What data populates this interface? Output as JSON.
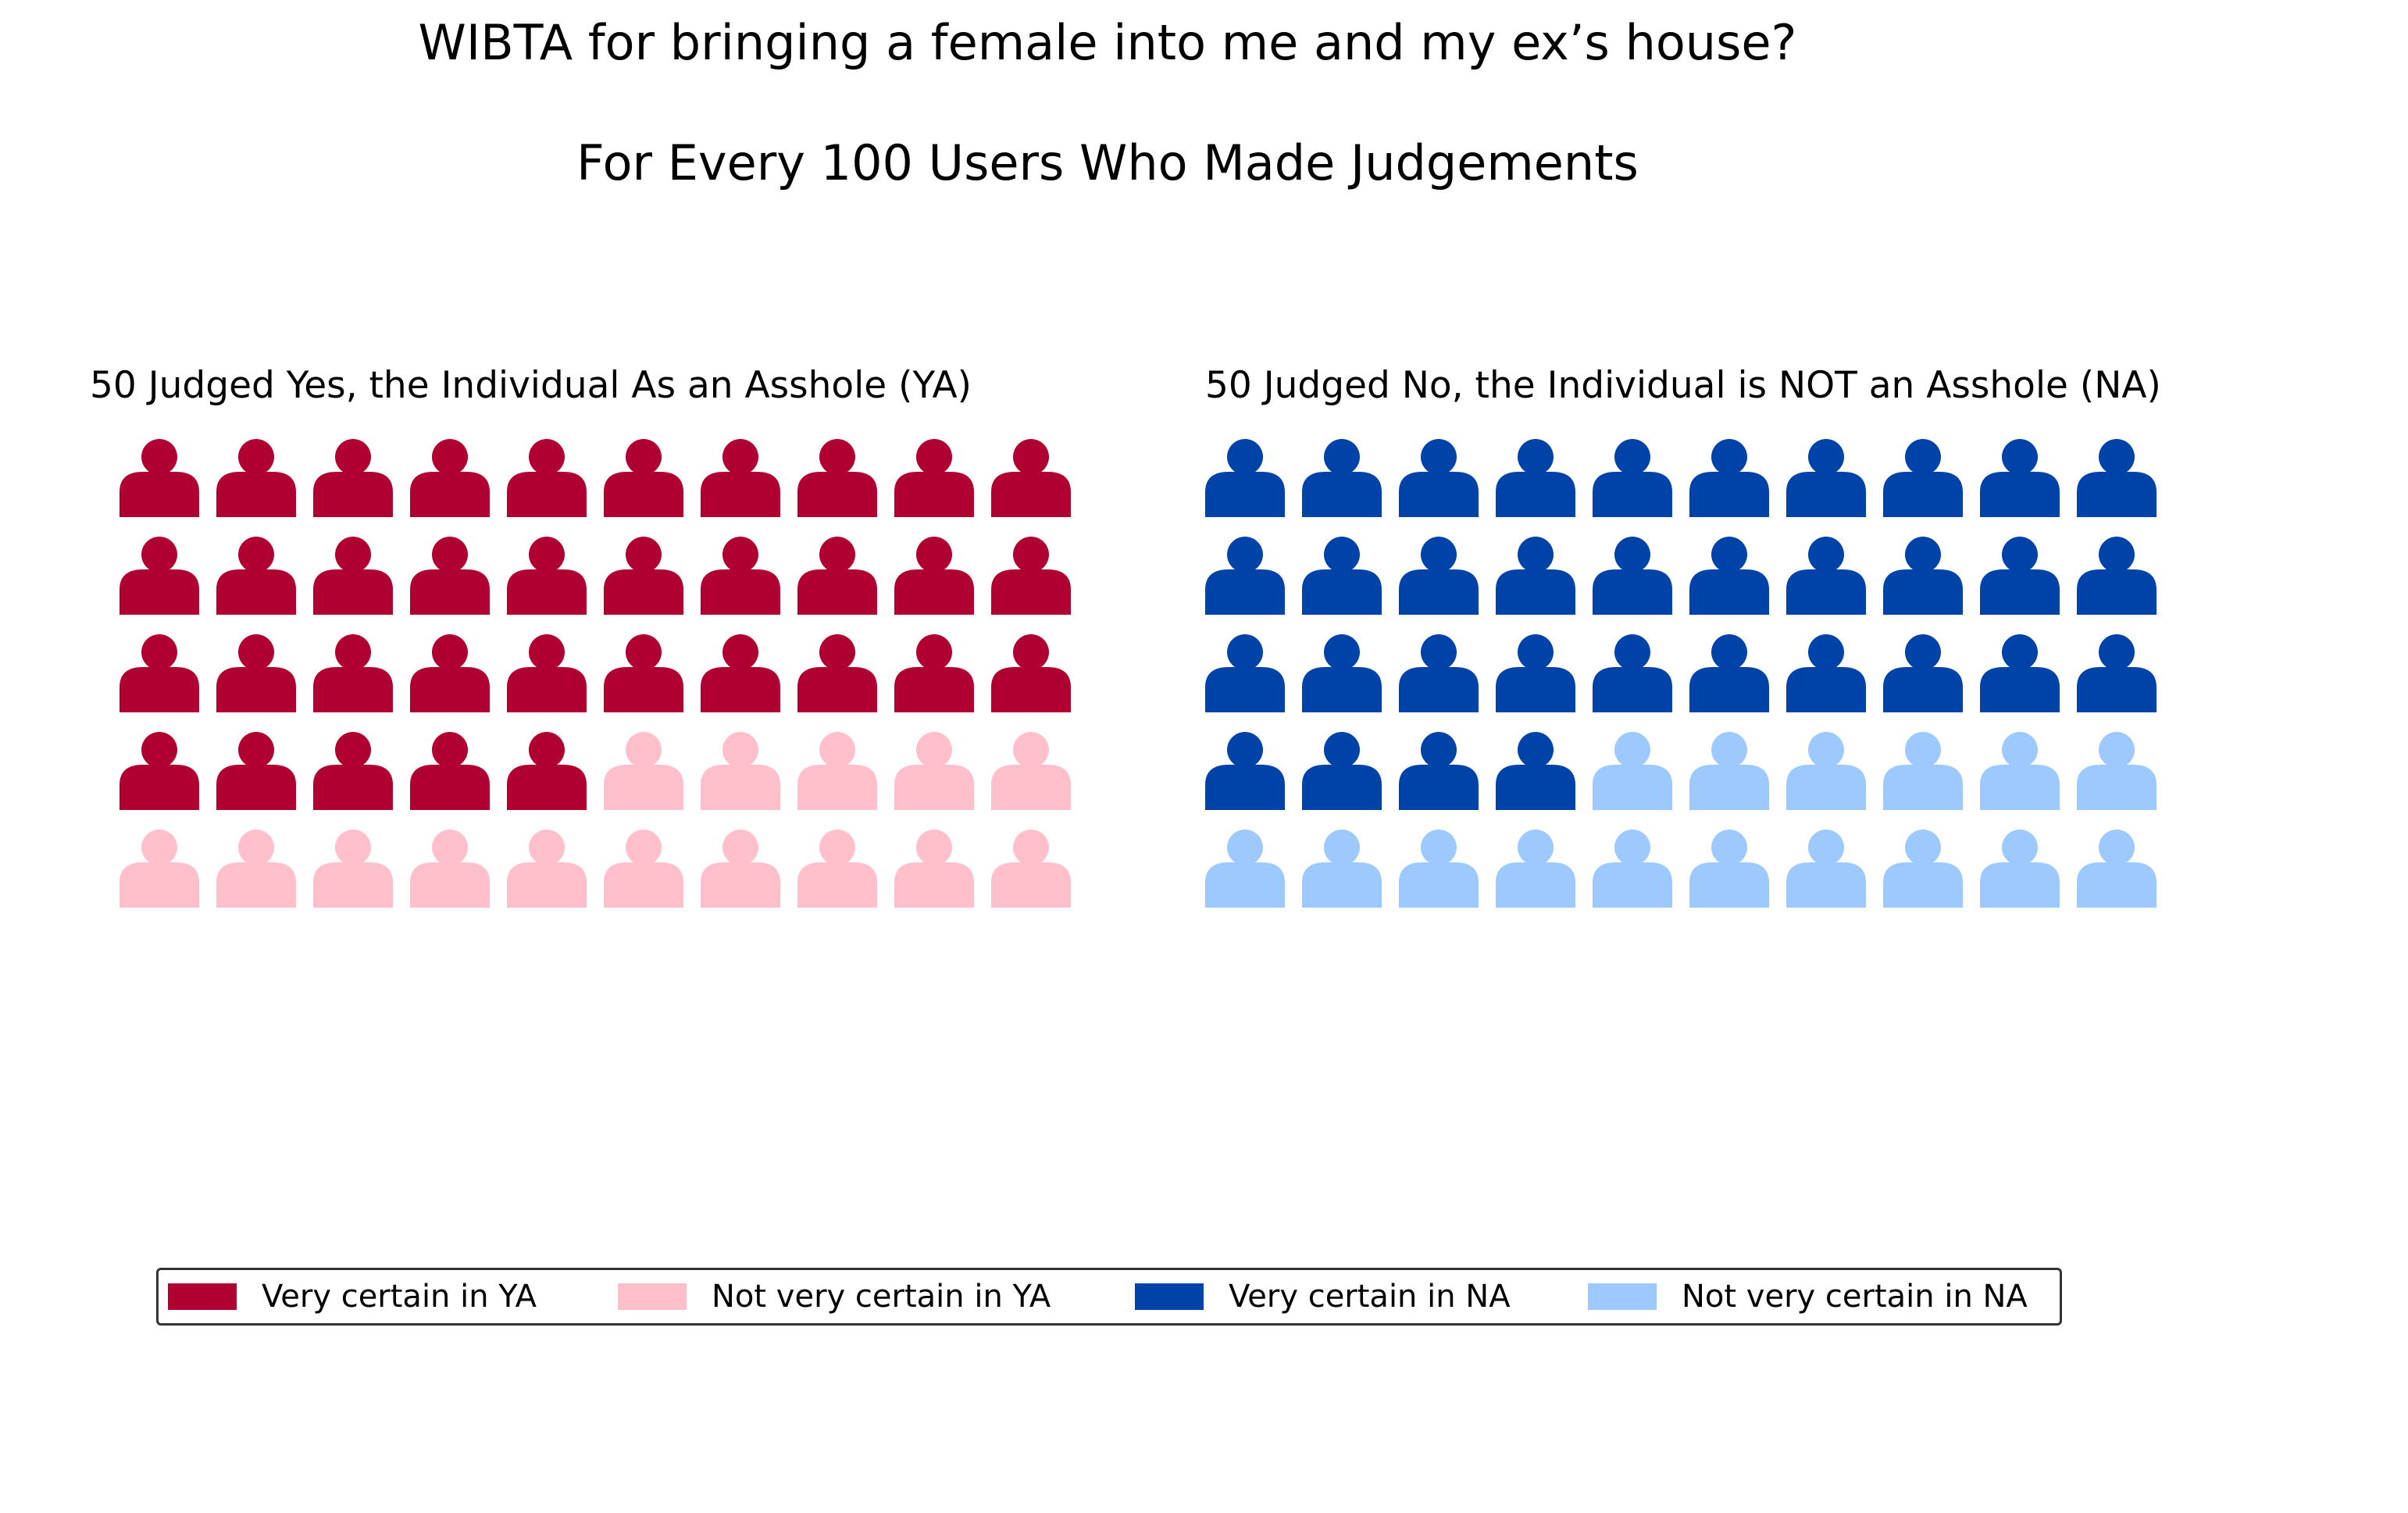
{
  "chart_data": {
    "type": "waffle",
    "title": "WIBTA for bringing a female into me and my ex’s house?",
    "subtitle": "For Every 100 Users Who Made Judgements",
    "panels": [
      {
        "title": "50 Judged Yes, the Individual As an Asshole (YA)",
        "total": 50,
        "segments": [
          {
            "name": "Very certain in YA",
            "count": 35,
            "color": "#b00032"
          },
          {
            "name": "Not very certain in YA",
            "count": 15,
            "color": "#ffc0cb"
          }
        ]
      },
      {
        "title": "50 Judged No, the Individual is NOT an Asshole (NA)",
        "total": 50,
        "segments": [
          {
            "name": "Very certain in NA",
            "count": 34,
            "color": "#0043a8"
          },
          {
            "name": "Not very certain in NA",
            "count": 16,
            "color": "#9ec9ff"
          }
        ]
      }
    ],
    "legend": {
      "placement": "bottom",
      "items": [
        {
          "label": "Very certain in YA",
          "color": "#b00032"
        },
        {
          "label": "Not very certain in YA",
          "color": "#ffc0cb"
        },
        {
          "label": "Very certain in NA",
          "color": "#0043a8"
        },
        {
          "label": "Not very certain in NA",
          "color": "#9ec9ff"
        }
      ]
    },
    "icon": "person-icon",
    "grid": false
  }
}
